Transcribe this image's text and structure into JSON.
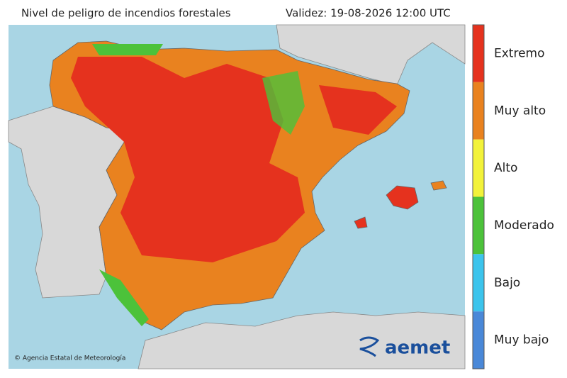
{
  "header": {
    "title": "Nivel de peligro de incendios forestales",
    "validity": "Validez: 19-08-2026 12:00 UTC"
  },
  "legend": {
    "levels": [
      {
        "label": "Extremo",
        "color": "#e5321e"
      },
      {
        "label": "Muy alto",
        "color": "#e9821f"
      },
      {
        "label": "Alto",
        "color": "#f2f23a"
      },
      {
        "label": "Moderado",
        "color": "#4cc23a"
      },
      {
        "label": "Bajo",
        "color": "#3cc4ec"
      },
      {
        "label": "Muy bajo",
        "color": "#4a88d8"
      }
    ]
  },
  "map": {
    "credit": "© Agencia Estatal de Meteorología",
    "logo": "aemet"
  }
}
